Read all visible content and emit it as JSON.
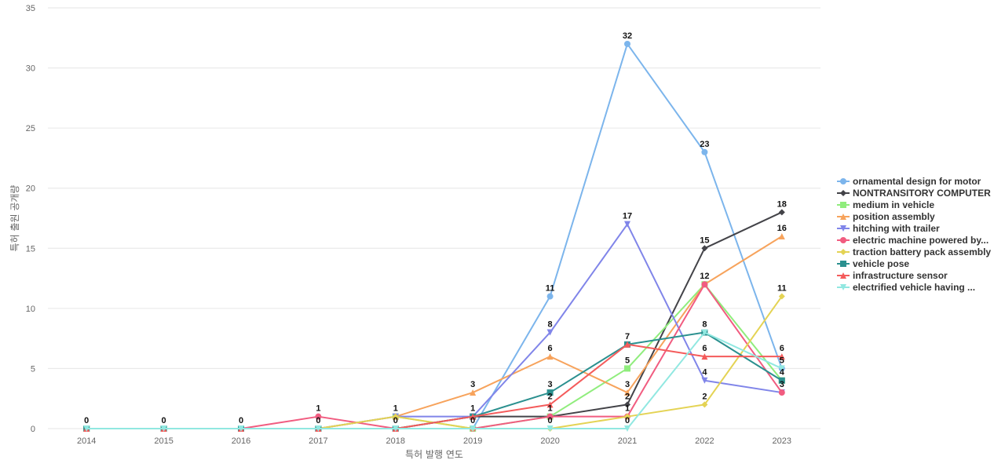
{
  "chart_data": {
    "type": "line",
    "title": "",
    "xlabel": "특허 발행 연도",
    "ylabel": "특허 출원 공개량",
    "categories": [
      "2014",
      "2015",
      "2016",
      "2017",
      "2018",
      "2019",
      "2020",
      "2021",
      "2022",
      "2023"
    ],
    "ylim": [
      0,
      35
    ],
    "yticks": [
      0,
      5,
      10,
      15,
      20,
      25,
      30,
      35
    ],
    "grid": true,
    "legend_position": "right",
    "series": [
      {
        "name": "ornamental design for motor",
        "color": "#7cb5ec",
        "marker": "circle",
        "values": [
          0,
          0,
          0,
          0,
          0,
          0,
          11,
          32,
          23,
          5
        ]
      },
      {
        "name": "NONTRANSITORY COMPUTER",
        "color": "#434348",
        "marker": "diamond",
        "values": [
          0,
          0,
          0,
          0,
          0,
          1,
          1,
          2,
          15,
          18
        ]
      },
      {
        "name": "medium in vehicle",
        "color": "#90ed7d",
        "marker": "square",
        "values": [
          0,
          0,
          0,
          0,
          1,
          0,
          1,
          5,
          12,
          4
        ]
      },
      {
        "name": "position assembly",
        "color": "#f7a35c",
        "marker": "triangle",
        "values": [
          0,
          0,
          0,
          0,
          1,
          3,
          6,
          3,
          12,
          16
        ]
      },
      {
        "name": "hitching with trailer",
        "color": "#8085e9",
        "marker": "triangle-down",
        "values": [
          0,
          0,
          0,
          0,
          1,
          1,
          8,
          17,
          4,
          3
        ]
      },
      {
        "name": "electric machine powered by...",
        "color": "#f15c80",
        "marker": "circle",
        "values": [
          0,
          0,
          0,
          1,
          0,
          0,
          1,
          1,
          12,
          3
        ]
      },
      {
        "name": "traction battery pack assembly",
        "color": "#e4d354",
        "marker": "diamond",
        "values": [
          0,
          0,
          0,
          0,
          1,
          0,
          0,
          1,
          2,
          11
        ]
      },
      {
        "name": "vehicle pose",
        "color": "#2b908f",
        "marker": "square",
        "values": [
          0,
          0,
          0,
          0,
          0,
          1,
          3,
          7,
          8,
          4
        ]
      },
      {
        "name": "infrastructure sensor",
        "color": "#f45b5b",
        "marker": "triangle",
        "values": [
          0,
          0,
          0,
          0,
          0,
          1,
          2,
          7,
          6,
          6
        ]
      },
      {
        "name": "electrified vehicle having ...",
        "color": "#91e8e1",
        "marker": "triangle-down",
        "values": [
          0,
          0,
          0,
          0,
          0,
          0,
          0,
          0,
          8,
          5
        ]
      }
    ],
    "data_labels": [
      {
        "series": 0,
        "index": 0,
        "text": "0"
      },
      {
        "series": 0,
        "index": 1,
        "text": "0"
      },
      {
        "series": 0,
        "index": 2,
        "text": "0"
      },
      {
        "series": 5,
        "index": 3,
        "text": "1"
      },
      {
        "series": 0,
        "index": 3,
        "text": "0"
      },
      {
        "series": 3,
        "index": 4,
        "text": "1"
      },
      {
        "series": 0,
        "index": 4,
        "text": "0"
      },
      {
        "series": 3,
        "index": 5,
        "text": "3"
      },
      {
        "series": 1,
        "index": 5,
        "text": "1"
      },
      {
        "series": 0,
        "index": 5,
        "text": "0"
      },
      {
        "series": 0,
        "index": 6,
        "text": "11"
      },
      {
        "series": 4,
        "index": 6,
        "text": "8"
      },
      {
        "series": 3,
        "index": 6,
        "text": "6"
      },
      {
        "series": 7,
        "index": 6,
        "text": "3"
      },
      {
        "series": 8,
        "index": 6,
        "text": "2"
      },
      {
        "series": 1,
        "index": 6,
        "text": "1"
      },
      {
        "series": 6,
        "index": 6,
        "text": "0"
      },
      {
        "series": 0,
        "index": 7,
        "text": "32"
      },
      {
        "series": 4,
        "index": 7,
        "text": "17"
      },
      {
        "series": 7,
        "index": 7,
        "text": "7"
      },
      {
        "series": 2,
        "index": 7,
        "text": "5"
      },
      {
        "series": 3,
        "index": 7,
        "text": "3"
      },
      {
        "series": 1,
        "index": 7,
        "text": "2"
      },
      {
        "series": 6,
        "index": 7,
        "text": "1"
      },
      {
        "series": 9,
        "index": 7,
        "text": "0"
      },
      {
        "series": 0,
        "index": 8,
        "text": "23"
      },
      {
        "series": 1,
        "index": 8,
        "text": "15"
      },
      {
        "series": 3,
        "index": 8,
        "text": "12"
      },
      {
        "series": 7,
        "index": 8,
        "text": "8"
      },
      {
        "series": 8,
        "index": 8,
        "text": "6"
      },
      {
        "series": 4,
        "index": 8,
        "text": "4"
      },
      {
        "series": 6,
        "index": 8,
        "text": "2"
      },
      {
        "series": 1,
        "index": 9,
        "text": "18"
      },
      {
        "series": 3,
        "index": 9,
        "text": "16"
      },
      {
        "series": 6,
        "index": 9,
        "text": "11"
      },
      {
        "series": 8,
        "index": 9,
        "text": "6"
      },
      {
        "series": 0,
        "index": 9,
        "text": "5"
      },
      {
        "series": 2,
        "index": 9,
        "text": "4"
      },
      {
        "series": 4,
        "index": 9,
        "text": "3"
      }
    ]
  }
}
